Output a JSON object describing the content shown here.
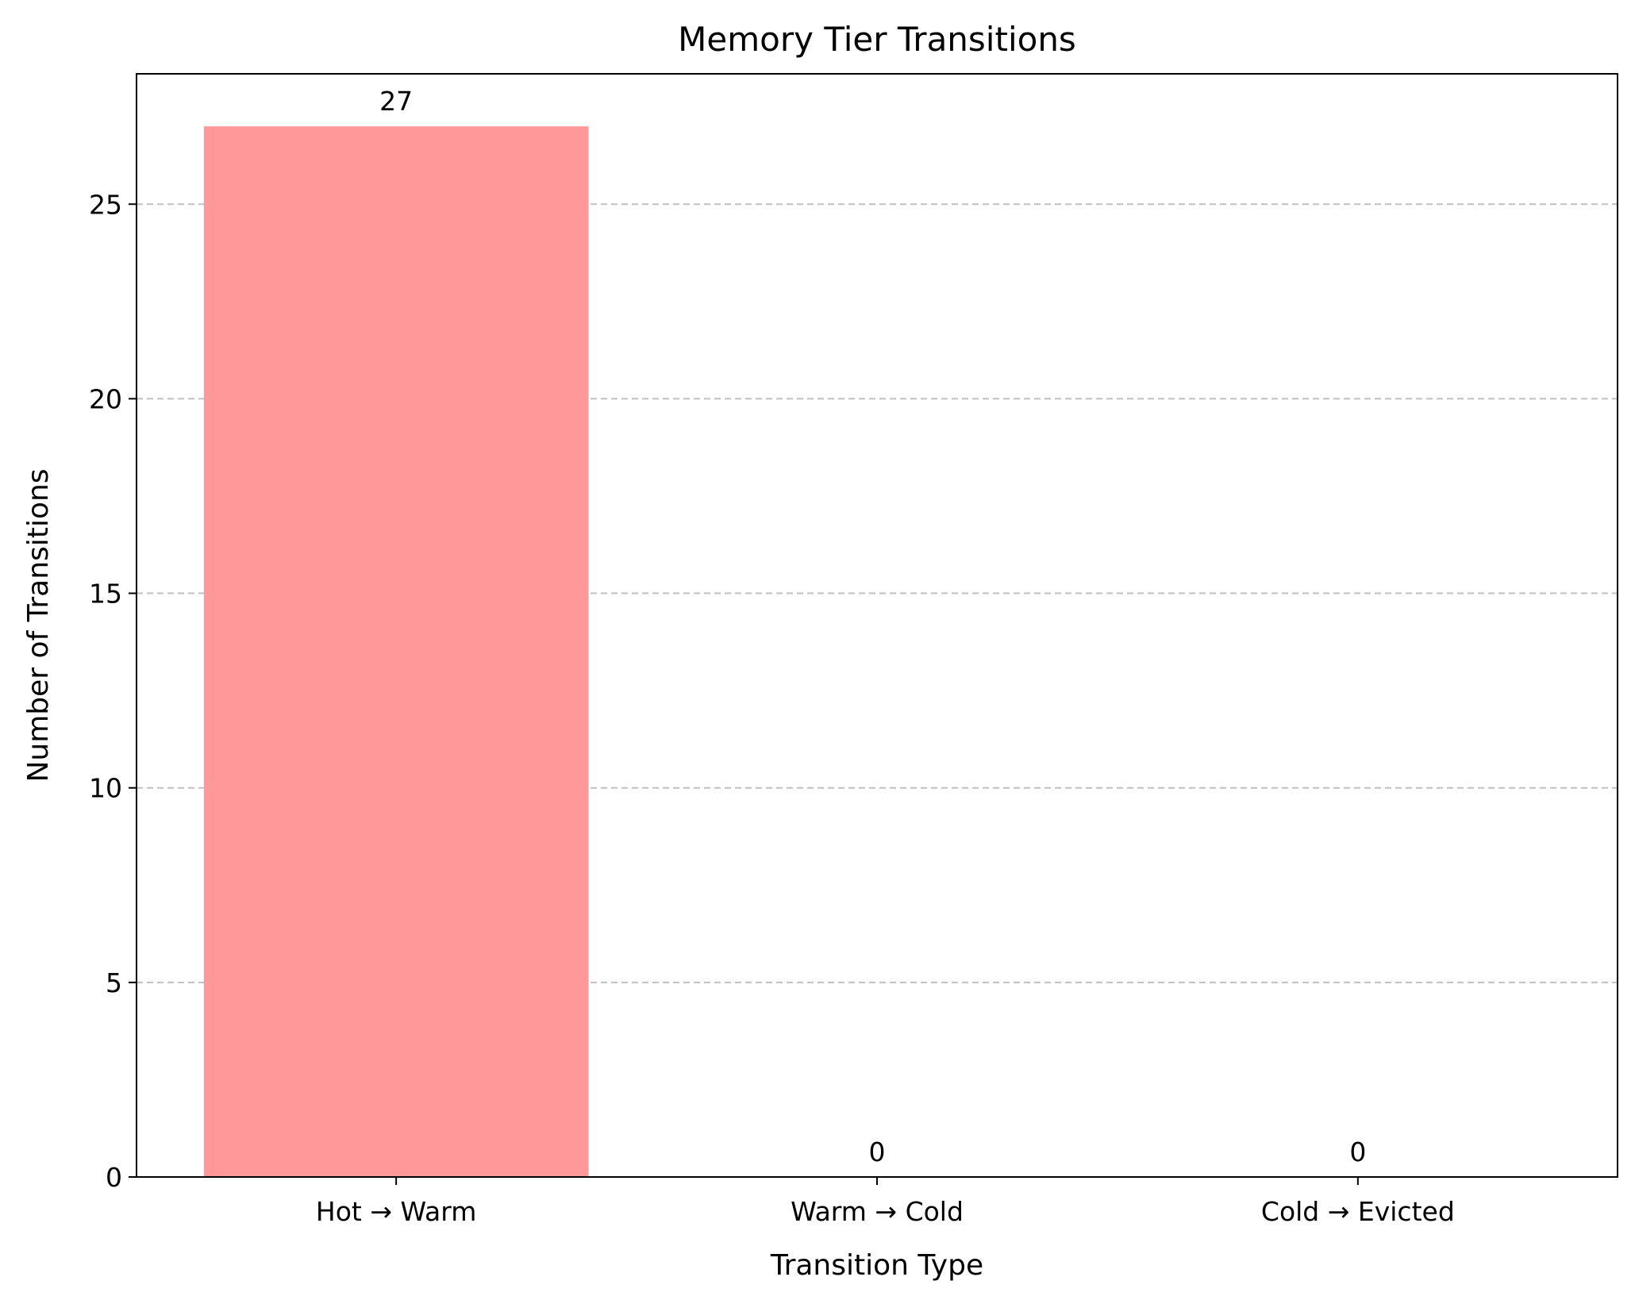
{
  "chart_data": {
    "type": "bar",
    "title": "Memory Tier Transitions",
    "xlabel": "Transition Type",
    "ylabel": "Number of Transitions",
    "categories": [
      "Hot → Warm",
      "Warm → Cold",
      "Cold → Evicted"
    ],
    "values": [
      27,
      0,
      0
    ],
    "data_labels": [
      "27",
      "0",
      "0"
    ],
    "ylim": [
      0,
      28.35
    ],
    "yticks": [
      0,
      5,
      10,
      15,
      20,
      25
    ],
    "bar_color": "#ff9999",
    "grid": "y-dashed"
  }
}
